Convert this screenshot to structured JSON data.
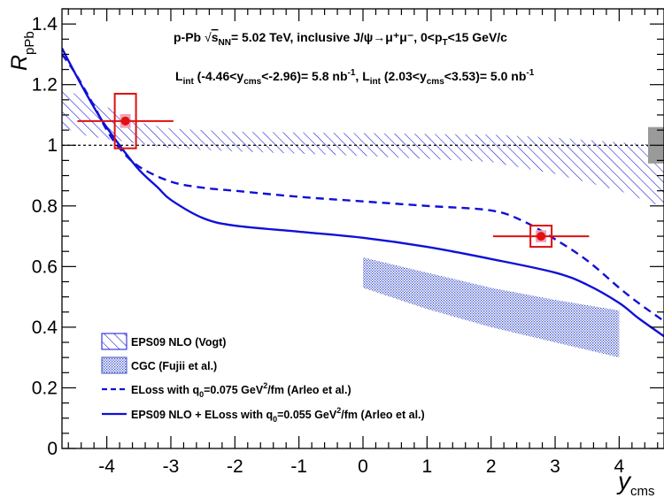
{
  "chart_data": {
    "type": "line",
    "xlabel": "y",
    "xlabel_sub": "cms",
    "ylabel": "R",
    "ylabel_sub": "pPb",
    "xlim": [
      -4.7,
      4.7
    ],
    "ylim": [
      0,
      1.45
    ],
    "x_ticks": [
      -4,
      -3,
      -2,
      -1,
      0,
      1,
      2,
      3,
      4
    ],
    "x_tick_labels": [
      "-4",
      "-3",
      "-2",
      "-1",
      "0",
      "1",
      "2",
      "3",
      "4"
    ],
    "y_ticks": [
      0,
      0.2,
      0.4,
      0.6,
      0.8,
      1,
      1.2,
      1.4
    ],
    "y_tick_labels": [
      "0",
      "0.2",
      "0.4",
      "0.6",
      "0.8",
      "1",
      "1.2",
      "1.4"
    ],
    "reference_line": 1.0,
    "global_uncertainty_box": {
      "y_low": 0.94,
      "y_high": 1.06
    },
    "annotations": {
      "line1": {
        "pre": "p-Pb  ",
        "sqrt": "s",
        "sqrt_sub": "NN",
        "post": "= 5.02 TeV, inclusive J/ψ→μ⁺μ⁻, 0<p",
        "pt_sub": "T",
        "tail": "<15 GeV/c"
      },
      "line2": {
        "a": "L",
        "a_sub": "int",
        "b": " (-4.46<y",
        "b_sub": "cms",
        "c": "<-2.96)= 5.8 nb",
        "c_sup": "-1",
        "d": ", L",
        "d_sub": "int",
        "e": " (2.03<y",
        "e_sub": "cms",
        "f": "<3.53)= 5.0 nb",
        "f_sup": "-1"
      }
    },
    "data_points": [
      {
        "x": -3.71,
        "y": 1.08,
        "x_low": -4.46,
        "x_high": -2.96,
        "stat": 0.014,
        "syst": 0.09
      },
      {
        "x": 2.78,
        "y": 0.7,
        "x_low": 2.03,
        "x_high": 3.53,
        "stat": 0.011,
        "syst": 0.035
      }
    ],
    "series": [
      {
        "name": "EPS09 NLO (Vogt)",
        "kind": "band_hatched",
        "color": "#1010d8",
        "upper": [
          [
            -4.7,
            1.19
          ],
          [
            -4.3,
            1.15
          ],
          [
            -3.8,
            1.11
          ],
          [
            -3.5,
            1.075
          ],
          [
            -3.0,
            1.055
          ],
          [
            -2.0,
            1.045
          ],
          [
            0.0,
            1.04
          ],
          [
            2.0,
            1.035
          ],
          [
            3.0,
            1.025
          ],
          [
            4.0,
            1.01
          ],
          [
            4.7,
            1.0
          ]
        ],
        "lower": [
          [
            -4.7,
            1.06
          ],
          [
            -4.3,
            1.03
          ],
          [
            -3.8,
            1.015
          ],
          [
            -3.5,
            1.005
          ],
          [
            -3.0,
            0.99
          ],
          [
            -2.0,
            0.98
          ],
          [
            0.0,
            0.965
          ],
          [
            2.0,
            0.945
          ],
          [
            3.0,
            0.905
          ],
          [
            4.0,
            0.85
          ],
          [
            4.7,
            0.795
          ]
        ]
      },
      {
        "name": "CGC (Fujii et al.)",
        "kind": "band_dotted",
        "color": "#3a4ec8",
        "upper": [
          [
            0.0,
            0.63
          ],
          [
            1.0,
            0.58
          ],
          [
            2.0,
            0.53
          ],
          [
            3.0,
            0.49
          ],
          [
            4.0,
            0.455
          ]
        ],
        "lower": [
          [
            0.0,
            0.53
          ],
          [
            1.0,
            0.46
          ],
          [
            2.0,
            0.4
          ],
          [
            3.0,
            0.35
          ],
          [
            4.0,
            0.3
          ]
        ]
      },
      {
        "name": "ELoss with q0=0.075 GeV²/fm (Arleo et al.)",
        "legend": {
          "pre": "ELoss with q",
          "sub": "0",
          "mid": "=0.075 GeV",
          "sup": "2",
          "post": "/fm (Arleo et al.)"
        },
        "kind": "line_dashed",
        "color": "#1010d8",
        "points": [
          [
            -4.7,
            1.3
          ],
          [
            -4.5,
            1.24
          ],
          [
            -4.2,
            1.13
          ],
          [
            -4.0,
            1.05
          ],
          [
            -3.8,
            0.99
          ],
          [
            -3.5,
            0.93
          ],
          [
            -3.0,
            0.88
          ],
          [
            -2.5,
            0.86
          ],
          [
            -2.0,
            0.85
          ],
          [
            -1.0,
            0.83
          ],
          [
            0.0,
            0.815
          ],
          [
            1.0,
            0.8
          ],
          [
            2.0,
            0.785
          ],
          [
            2.5,
            0.75
          ],
          [
            3.0,
            0.69
          ],
          [
            3.5,
            0.62
          ],
          [
            4.0,
            0.53
          ],
          [
            4.3,
            0.48
          ],
          [
            4.7,
            0.42
          ]
        ]
      },
      {
        "name": "EPS09 NLO + ELoss with q0=0.055 GeV²/fm (Arleo et al.)",
        "legend": {
          "pre": "EPS09 NLO + ELoss with q",
          "sub": "0",
          "mid": "=0.055 GeV",
          "sup": "2",
          "post": "/fm (Arleo et al.)"
        },
        "kind": "line_solid",
        "color": "#1010d8",
        "points": [
          [
            -4.7,
            1.32
          ],
          [
            -4.4,
            1.2
          ],
          [
            -4.1,
            1.09
          ],
          [
            -3.8,
            1.0
          ],
          [
            -3.5,
            0.92
          ],
          [
            -3.2,
            0.86
          ],
          [
            -3.0,
            0.82
          ],
          [
            -2.5,
            0.76
          ],
          [
            -2.0,
            0.735
          ],
          [
            -1.0,
            0.715
          ],
          [
            0.0,
            0.695
          ],
          [
            1.0,
            0.665
          ],
          [
            2.0,
            0.625
          ],
          [
            3.0,
            0.58
          ],
          [
            3.5,
            0.54
          ],
          [
            4.0,
            0.48
          ],
          [
            4.3,
            0.43
          ],
          [
            4.7,
            0.37
          ]
        ]
      }
    ]
  }
}
